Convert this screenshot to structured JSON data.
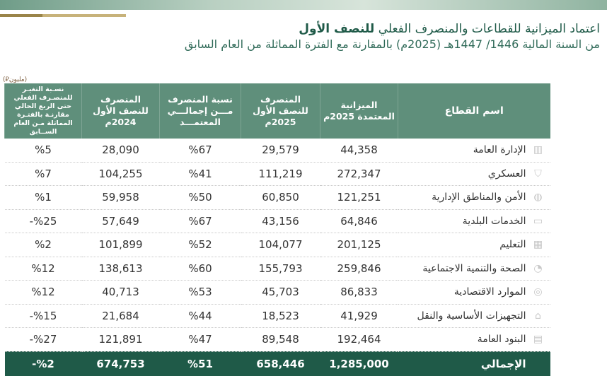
{
  "title": {
    "main": "اعتماد الميزانية للقطاعات والمنصرف الفعلي",
    "bold": "للنصف الأول",
    "subtitle": "من السنة المالية 1446/ 1447هـ (2025م) بالمقارنة مع الفترة المماثلة من العام السابق"
  },
  "unit_label": "(مليون⃁)",
  "headers": {
    "sector": "اسم القطاع",
    "budget": "الميزانية المعتمدة 2025م",
    "spent_2025": "المنصرف للنصف الأول 2025م",
    "ratio": "نسبة المنصرف مـــن إجمالـــي المعتمـــد",
    "spent_2024": "المنصرف للنصف الأول 2024م",
    "change": "نسـبة التغيـر للمنصـرف الفعلي حتى الربع الحالي مقارنـة بالفتـرة المماثلة مـن العام الســابق"
  },
  "rows": [
    {
      "icon": "building-icon",
      "sector": "الإدارة العامة",
      "budget": "44,358",
      "spent_2025": "29,579",
      "ratio": "%67",
      "spent_2024": "28,090",
      "change": "%5"
    },
    {
      "icon": "shield-icon",
      "sector": "العسكري",
      "budget": "272,347",
      "spent_2025": "111,219",
      "ratio": "%41",
      "spent_2024": "104,255",
      "change": "%7"
    },
    {
      "icon": "globe-icon",
      "sector": "الأمن والمناطق الإدارية",
      "budget": "121,251",
      "spent_2025": "60,850",
      "ratio": "%50",
      "spent_2024": "59,958",
      "change": "%1"
    },
    {
      "icon": "municipal-icon",
      "sector": "الخدمات البلدية",
      "budget": "64,846",
      "spent_2025": "43,156",
      "ratio": "%67",
      "spent_2024": "57,649",
      "change": "%25-"
    },
    {
      "icon": "education-icon",
      "sector": "التعليم",
      "budget": "201,125",
      "spent_2025": "104,077",
      "ratio": "%52",
      "spent_2024": "101,899",
      "change": "%2"
    },
    {
      "icon": "health-icon",
      "sector": "الصحة والتنمية الاجتماعية",
      "budget": "259,846",
      "spent_2025": "155,793",
      "ratio": "%60",
      "spent_2024": "138,613",
      "change": "%12"
    },
    {
      "icon": "economy-icon",
      "sector": "الموارد الاقتصادية",
      "budget": "86,833",
      "spent_2025": "45,703",
      "ratio": "%53",
      "spent_2024": "40,713",
      "change": "%12"
    },
    {
      "icon": "infrastructure-icon",
      "sector": "التجهيزات الأساسية والنقل",
      "budget": "41,929",
      "spent_2025": "18,523",
      "ratio": "%44",
      "spent_2024": "21,684",
      "change": "%15-"
    },
    {
      "icon": "document-icon",
      "sector": "البنود العامة",
      "budget": "192,464",
      "spent_2025": "89,548",
      "ratio": "%47",
      "spent_2024": "121,891",
      "change": "%27-"
    }
  ],
  "total": {
    "sector": "الإجمالي",
    "budget": "1,285,000",
    "spent_2025": "658,446",
    "ratio": "%51",
    "spent_2024": "674,753",
    "change": "%2-"
  },
  "icon_glyphs": {
    "building-icon": "▥",
    "shield-icon": "⛉",
    "globe-icon": "◍",
    "municipal-icon": "▭",
    "education-icon": "▦",
    "health-icon": "◔",
    "economy-icon": "◎",
    "infrastructure-icon": "⌂",
    "document-icon": "▤"
  },
  "colors": {
    "header": "#5f8f7b",
    "total": "#1f5a48",
    "title": "#1f5a48"
  }
}
